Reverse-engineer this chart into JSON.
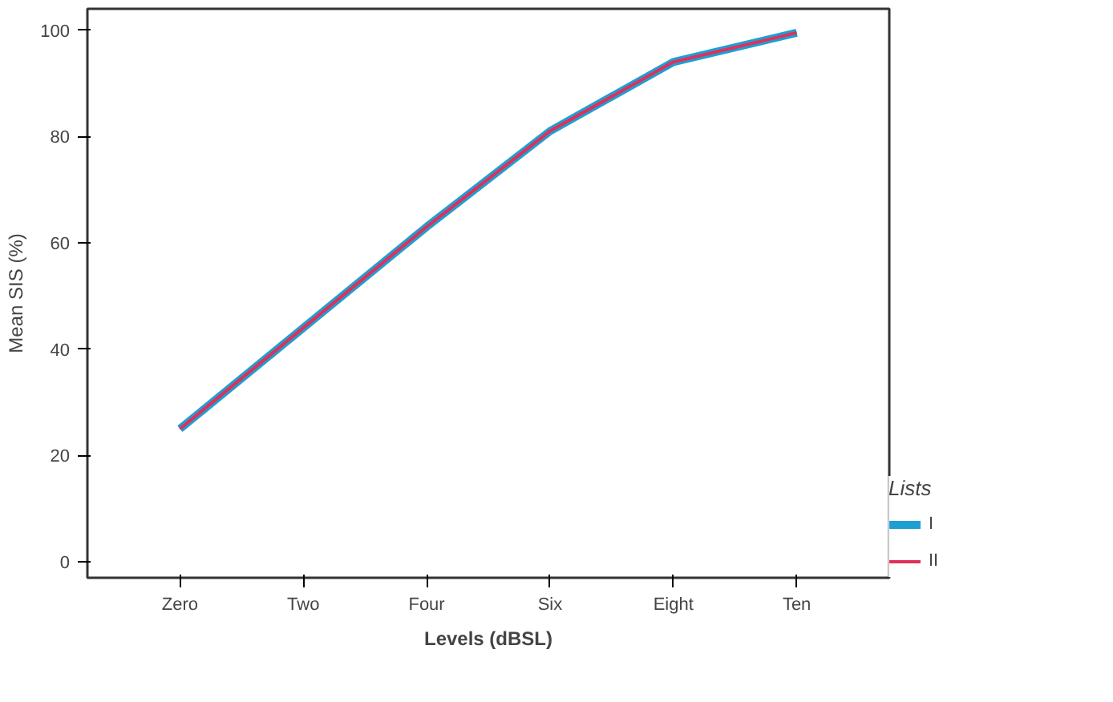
{
  "chart_data": {
    "type": "line",
    "xlabel": "Levels (dBSL)",
    "ylabel": "Mean SIS (%)",
    "legend_title": "Lists",
    "categories": [
      "Zero",
      "Two",
      "Four",
      "Six",
      "Eight",
      "Ten"
    ],
    "series": [
      {
        "name": "I",
        "color": "#1e9fd2",
        "values": [
          25,
          44,
          63,
          81,
          94,
          99.5
        ]
      },
      {
        "name": "II",
        "color": "#e0305a",
        "values": [
          25,
          44,
          63,
          81,
          94,
          99.5
        ]
      }
    ],
    "ylim": [
      -3,
      104
    ],
    "yticks": [
      0,
      20,
      40,
      60,
      80,
      100
    ],
    "grid": false,
    "legend": "right",
    "marker": "none",
    "line_style": "solid"
  }
}
